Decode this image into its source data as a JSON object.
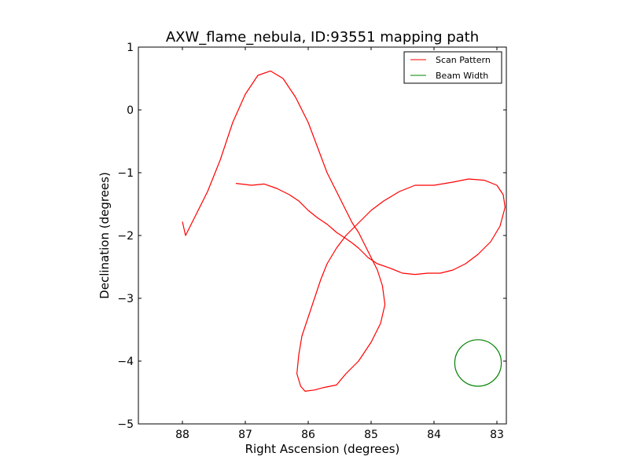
{
  "chart_data": {
    "type": "line",
    "title": "AXW_flame_nebula, ID:93551 mapping path",
    "xlabel": "Right Ascension (degrees)",
    "ylabel": "Declination (degrees)",
    "xlim": [
      88.7,
      82.85
    ],
    "ylim": [
      -5,
      1
    ],
    "x_inverted": true,
    "xticks": [
      88,
      87,
      86,
      85,
      84,
      83
    ],
    "xtick_labels": [
      "88",
      "87",
      "86",
      "85",
      "84",
      "83"
    ],
    "yticks": [
      1,
      0,
      -1,
      -2,
      -3,
      -4,
      -5
    ],
    "ytick_labels": [
      "1",
      "0",
      "−1",
      "−2",
      "−3",
      "−4",
      "−5"
    ],
    "grid": false,
    "legend_position": "top-right",
    "series": [
      {
        "name": "Scan Pattern",
        "color": "#ff0000",
        "x": [
          87.15,
          86.9,
          86.7,
          86.5,
          86.3,
          86.15,
          86.0,
          85.85,
          85.7,
          85.55,
          85.4,
          85.3,
          85.2,
          85.05,
          84.9,
          84.7,
          84.5,
          84.3,
          84.1,
          83.9,
          83.7,
          83.5,
          83.3,
          83.1,
          82.95,
          82.87,
          82.9,
          83.0,
          83.2,
          83.45,
          83.7,
          84.0,
          84.3,
          84.55,
          84.8,
          85.0,
          85.2,
          85.4,
          85.55,
          85.7,
          85.8,
          85.9,
          86.0,
          86.1,
          86.15,
          86.18,
          86.12,
          86.05,
          85.9,
          85.75,
          85.55,
          85.4,
          85.2,
          85.0,
          84.85,
          84.78,
          84.82,
          84.9,
          85.0,
          85.1,
          85.2,
          85.3,
          85.4,
          85.55,
          85.7,
          85.85,
          86.0,
          86.2,
          86.4,
          86.6,
          86.8,
          87.0,
          87.2,
          87.4,
          87.6,
          87.8,
          87.95,
          88.0
        ],
        "y": [
          -1.17,
          -1.2,
          -1.18,
          -1.25,
          -1.35,
          -1.45,
          -1.6,
          -1.72,
          -1.82,
          -1.95,
          -2.05,
          -2.12,
          -2.2,
          -2.35,
          -2.45,
          -2.52,
          -2.6,
          -2.62,
          -2.6,
          -2.6,
          -2.55,
          -2.45,
          -2.3,
          -2.1,
          -1.85,
          -1.55,
          -1.35,
          -1.2,
          -1.12,
          -1.1,
          -1.15,
          -1.2,
          -1.2,
          -1.3,
          -1.45,
          -1.6,
          -1.8,
          -2.0,
          -2.2,
          -2.45,
          -2.7,
          -3.0,
          -3.3,
          -3.6,
          -3.9,
          -4.2,
          -4.4,
          -4.48,
          -4.46,
          -4.42,
          -4.38,
          -4.2,
          -4.0,
          -3.7,
          -3.4,
          -3.1,
          -2.8,
          -2.55,
          -2.35,
          -2.15,
          -1.95,
          -1.8,
          -1.6,
          -1.3,
          -1.0,
          -0.6,
          -0.2,
          0.2,
          0.5,
          0.62,
          0.55,
          0.25,
          -0.2,
          -0.8,
          -1.3,
          -1.7,
          -2.0,
          -1.78
        ]
      },
      {
        "name": "Beam Width",
        "color": "#008000",
        "shape": "circle",
        "center": [
          83.3,
          -4.03
        ],
        "radius": 0.37
      }
    ]
  }
}
